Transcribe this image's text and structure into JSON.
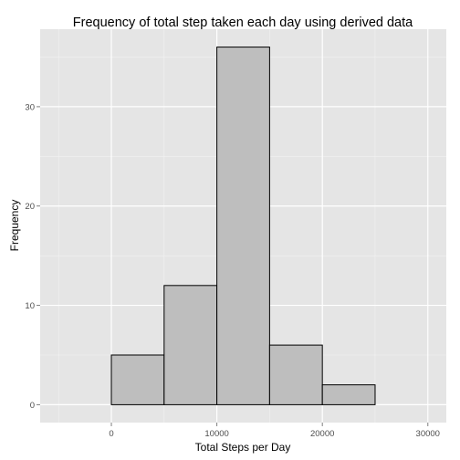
{
  "chart_data": {
    "type": "bar",
    "title": "Frequency of total step taken each day using derived data",
    "xlabel": "Total Steps per Day",
    "ylabel": "Frequency",
    "bins": [
      {
        "x0": -5000,
        "x1": 0,
        "count": 0
      },
      {
        "x0": 0,
        "x1": 5000,
        "count": 5
      },
      {
        "x0": 5000,
        "x1": 10000,
        "count": 12
      },
      {
        "x0": 10000,
        "x1": 15000,
        "count": 36
      },
      {
        "x0": 15000,
        "x1": 20000,
        "count": 6
      },
      {
        "x0": 20000,
        "x1": 25000,
        "count": 2
      },
      {
        "x0": 25000,
        "x1": 30000,
        "count": 0
      }
    ],
    "xlim": [
      -6750,
      31750
    ],
    "ylim": [
      -1.8,
      37.8
    ],
    "x_ticks": [
      0,
      10000,
      20000,
      30000
    ],
    "x_tick_labels": [
      "0",
      "10000",
      "20000",
      "30000"
    ],
    "y_ticks": [
      0,
      10,
      20,
      30
    ],
    "y_tick_labels": [
      "0",
      "10",
      "20",
      "30"
    ],
    "grid": true,
    "colors": {
      "panel": "#e5e5e5",
      "grid_major": "#ffffff",
      "grid_minor": "#f2f2f2",
      "bar_fill": "#bebebe",
      "bar_stroke": "#000000"
    }
  }
}
